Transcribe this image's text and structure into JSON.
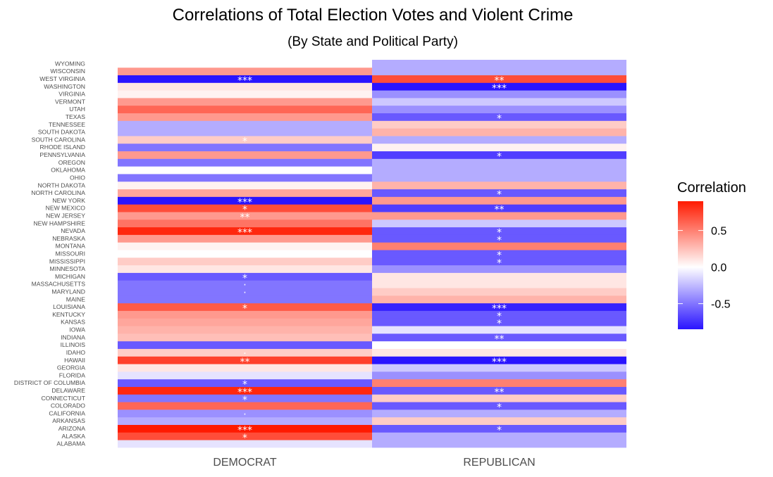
{
  "title": "Correlations of Total Election Votes and Violent Crime",
  "subtitle": "(By State and Political Party)",
  "chart_data": {
    "type": "heatmap",
    "x_categories": [
      "DEMOCRAT",
      "REPUBLICAN"
    ],
    "y_categories": [
      "ALABAMA",
      "ALASKA",
      "ARIZONA",
      "ARKANSAS",
      "CALIFORNIA",
      "COLORADO",
      "CONNECTICUT",
      "DELAWARE",
      "DISTRICT OF COLUMBIA",
      "FLORIDA",
      "GEORGIA",
      "HAWAII",
      "IDAHO",
      "ILLINOIS",
      "INDIANA",
      "IOWA",
      "KANSAS",
      "KENTUCKY",
      "LOUISIANA",
      "MAINE",
      "MARYLAND",
      "MASSACHUSETTS",
      "MICHIGAN",
      "MINNESOTA",
      "MISSISSIPPI",
      "MISSOURI",
      "MONTANA",
      "NEBRASKA",
      "NEVADA",
      "NEW HAMPSHIRE",
      "NEW JERSEY",
      "NEW MEXICO",
      "NEW YORK",
      "NORTH CAROLINA",
      "NORTH DAKOTA",
      "OHIO",
      "OKLAHOMA",
      "OREGON",
      "PENNSYLVANIA",
      "RHODE ISLAND",
      "SOUTH CAROLINA",
      "SOUTH DAKOTA",
      "TENNESSEE",
      "TEXAS",
      "UTAH",
      "VERMONT",
      "VIRGINIA",
      "WASHINGTON",
      "WEST VIRGINIA",
      "WISCONSIN",
      "WYOMING"
    ],
    "values": {
      "DEMOCRAT": [
        -0.1,
        0.7,
        0.9,
        -0.3,
        -0.4,
        0.6,
        -0.5,
        0.85,
        -0.6,
        -0.1,
        0.1,
        0.75,
        0.2,
        -0.6,
        0.25,
        0.3,
        0.35,
        0.4,
        0.65,
        -0.5,
        -0.5,
        -0.5,
        -0.6,
        0.1,
        0.2,
        0.0,
        0.05,
        0.4,
        0.85,
        0.55,
        0.4,
        0.7,
        -0.85,
        0.35,
        0.05,
        -0.5,
        0.0,
        -0.5,
        0.4,
        -0.5,
        0.2,
        -0.3,
        -0.3,
        0.4,
        0.6,
        0.4,
        0.05,
        0.1,
        -0.85,
        0.4,
        0.0
      ],
      "REPUBLICAN": [
        -0.3,
        -0.3,
        -0.6,
        0.2,
        -0.3,
        -0.6,
        0.2,
        -0.6,
        0.5,
        -0.4,
        -0.2,
        -0.85,
        0.1,
        0.0,
        -0.6,
        -0.1,
        -0.6,
        -0.6,
        -0.8,
        0.3,
        0.2,
        0.1,
        0.1,
        -0.4,
        -0.6,
        -0.6,
        0.5,
        -0.6,
        -0.6,
        -0.2,
        0.4,
        -0.7,
        0.4,
        -0.6,
        0.3,
        -0.3,
        -0.3,
        -0.3,
        -0.7,
        0.05,
        -0.3,
        0.3,
        0.2,
        -0.6,
        -0.4,
        -0.2,
        -0.4,
        -0.85,
        0.7,
        -0.3,
        -0.3
      ]
    },
    "significance": {
      "DEMOCRAT": [
        "",
        "*",
        "***",
        "",
        ".",
        "",
        "*",
        "***",
        "*",
        "",
        "",
        "**",
        ".",
        "",
        "",
        "",
        "",
        "",
        "*",
        "",
        ".",
        ".",
        "*",
        "",
        "",
        "",
        "",
        "",
        "***",
        "",
        "**",
        "*",
        "***",
        "",
        "",
        "",
        "",
        "",
        "",
        "",
        "*",
        "",
        "",
        "",
        "",
        "",
        "",
        "",
        "***",
        "",
        ""
      ],
      "REPUBLICAN": [
        "",
        "",
        "*",
        "",
        "",
        "*",
        "",
        "**",
        "",
        "",
        "",
        "***",
        "",
        "",
        "**",
        "",
        "*",
        "*",
        "***",
        "",
        "",
        "",
        "",
        "",
        "*",
        "*",
        "",
        "*",
        "*",
        "",
        "",
        "**",
        "",
        "*",
        "",
        "",
        "",
        "",
        "*",
        "",
        "",
        "",
        "",
        "*",
        "",
        "",
        "",
        "***",
        "**",
        "",
        ""
      ]
    },
    "xlabel": "",
    "ylabel": "",
    "legend": {
      "title": "Correlation",
      "ticks": [
        "0.5",
        "0.0",
        "-0.5"
      ],
      "tick_values": [
        0.5,
        0.0,
        -0.5
      ],
      "range": [
        -0.85,
        0.9
      ],
      "low_color": "#2a14ff",
      "mid_color": "#ffffff",
      "high_color": "#ff1a00",
      "position": "right"
    },
    "grid": false
  }
}
